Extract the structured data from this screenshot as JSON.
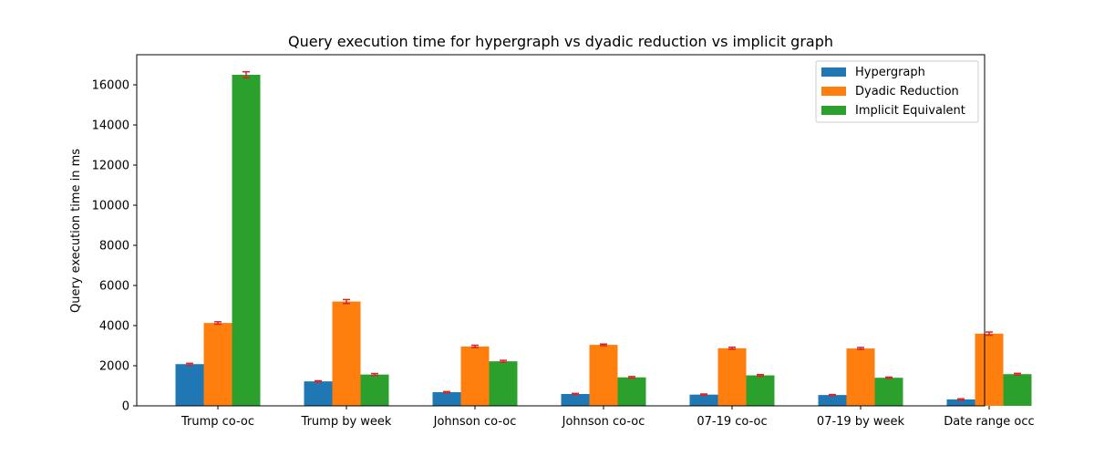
{
  "chart_data": {
    "type": "bar",
    "title": "Query execution time for hypergraph vs dyadic reduction vs implicit graph",
    "xlabel": "",
    "ylabel": "Query execution time in ms",
    "categories": [
      "Trump co-oc",
      "Trump by week",
      "Johnson co-oc",
      "Johnson co-oc",
      "07-19 co-oc",
      "07-19 by week",
      "Date range occ"
    ],
    "ylim": [
      0,
      17500
    ],
    "yticks": [
      0,
      2000,
      4000,
      6000,
      8000,
      10000,
      12000,
      14000,
      16000
    ],
    "grid": false,
    "legend_position": "top-right",
    "error_bar_color": "#d62728",
    "series": [
      {
        "name": "Hypergraph",
        "color": "#1f77b4",
        "values": [
          2080,
          1220,
          680,
          590,
          560,
          540,
          320
        ],
        "errors": [
          40,
          30,
          30,
          30,
          30,
          25,
          30
        ]
      },
      {
        "name": "Dyadic Reduction",
        "color": "#ff7f0e",
        "values": [
          4130,
          5200,
          2960,
          3040,
          2870,
          2860,
          3600
        ],
        "errors": [
          60,
          100,
          60,
          40,
          50,
          50,
          80
        ]
      },
      {
        "name": "Implicit Equivalent",
        "color": "#2ca02c",
        "values": [
          16500,
          1560,
          2220,
          1420,
          1520,
          1400,
          1580
        ],
        "errors": [
          150,
          50,
          50,
          40,
          40,
          30,
          40
        ]
      }
    ]
  }
}
